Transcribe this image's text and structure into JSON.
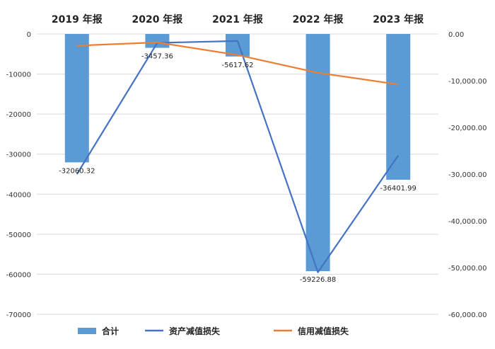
{
  "chart_data": {
    "type": "bar",
    "categories": [
      "2019 年报",
      "2020 年报",
      "2021 年报",
      "2022 年报",
      "2023 年报"
    ],
    "series": [
      {
        "name": "合计",
        "kind": "bar",
        "axis": "left",
        "values": [
          -32060.32,
          -3457.36,
          -5617.62,
          -59226.88,
          -36401.99
        ],
        "labels": [
          "-32060.32",
          "-3457.36",
          "-5617.62",
          "-59226.88",
          "-36401.99"
        ]
      },
      {
        "name": "资产减值损失",
        "kind": "line",
        "axis": "right",
        "values": [
          -30000,
          -1900,
          -1500,
          -51000,
          -26000
        ]
      },
      {
        "name": "信用减值损失",
        "kind": "line",
        "axis": "right",
        "values": [
          -2500,
          -1800,
          -4500,
          -8300,
          -10800
        ]
      }
    ],
    "left_axis": {
      "ylim": [
        -70000,
        0
      ],
      "ticks": [
        0,
        -10000,
        -20000,
        -30000,
        -40000,
        -50000,
        -60000,
        -70000
      ],
      "tick_labels": [
        "0",
        "-10000",
        "-20000",
        "-30000",
        "-40000",
        "-50000",
        "-60000",
        "-70000"
      ]
    },
    "right_axis": {
      "ylim": [
        -60000,
        0
      ],
      "ticks": [
        0,
        -10000,
        -20000,
        -30000,
        -40000,
        -50000,
        -60000
      ],
      "tick_labels": [
        "0.00",
        "-10,000.00",
        "-20,000.00",
        "-30,000.00",
        "-40,000.00",
        "-50,000.00",
        "-60,000.00"
      ]
    },
    "grid": true,
    "category_axis_position": "top",
    "legend_position": "bottom",
    "colors": {
      "bar": "#5b9bd5",
      "line_asset": "#4472c4",
      "line_credit": "#ed7d31",
      "grid": "#d9d9d9"
    }
  }
}
